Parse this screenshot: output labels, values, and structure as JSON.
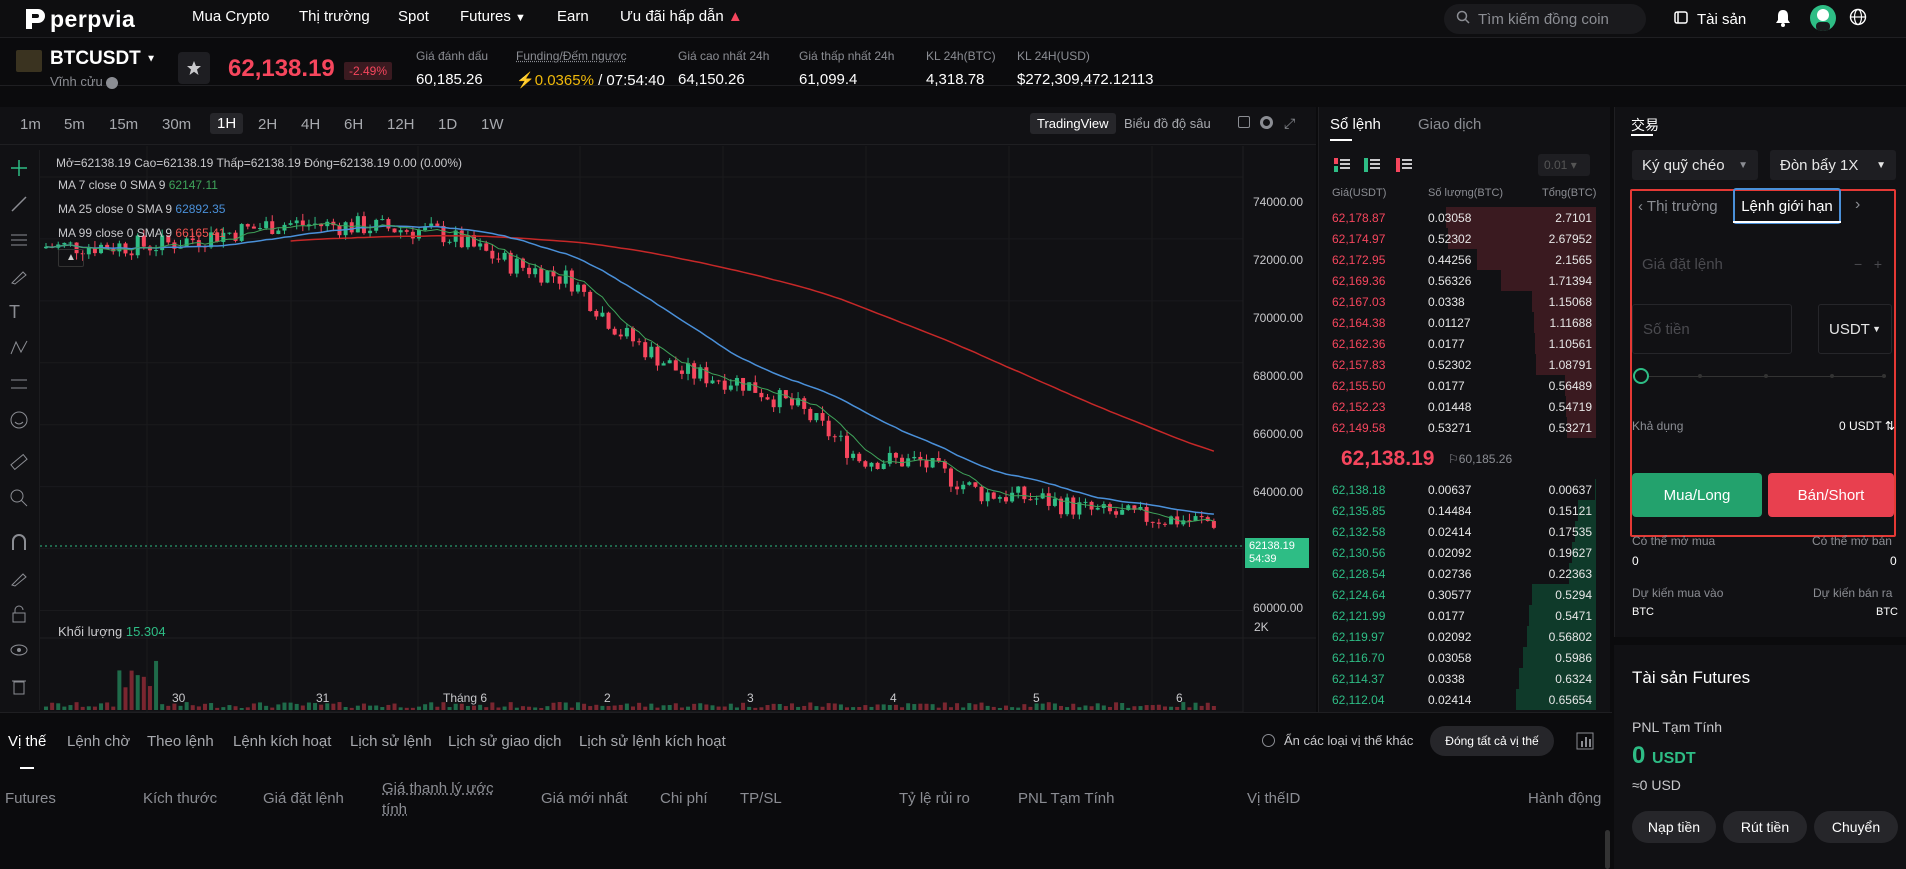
{
  "nav": {
    "logo_text": "perpvia",
    "items": [
      "Mua Crypto",
      "Thị trường",
      "Spot",
      "Futures",
      "Earn",
      "Ưu đãi hấp dẫn"
    ],
    "search_placeholder": "Tìm kiếm đồng coin",
    "assets_label": "Tài sản"
  },
  "ticker": {
    "symbol": "BTCUSDT",
    "sub": "Vĩnh cửu",
    "last_price": "62,138.19",
    "change": "-2.49%",
    "stats": [
      {
        "label": "Giá đánh dấu",
        "value": "60,185.26"
      },
      {
        "label": "Funding/Đếm ngược",
        "value_rate": "0.0365%",
        "value_count": "/ 07:54:40"
      },
      {
        "label": "Giá cao nhất 24h",
        "value": "64,150.26"
      },
      {
        "label": "Giá thấp nhất 24h",
        "value": "61,099.4"
      },
      {
        "label": "KL 24h(BTC)",
        "value": "4,318.78"
      },
      {
        "label": "KL 24H(USD)",
        "value": "$272,309,472.12113"
      }
    ]
  },
  "chart": {
    "timeframes": [
      "1m",
      "5m",
      "15m",
      "30m",
      "1H",
      "2H",
      "4H",
      "6H",
      "12H",
      "1D",
      "1W"
    ],
    "active_timeframe": "1H",
    "view_tradingview": "TradingView",
    "view_depth": "Biểu đồ độ sâu",
    "ohlc_line": "Mở=62138.19  Cao=62138.19  Thấp=62138.19  Đóng=62138.19  0.00 (0.00%)",
    "ma7_label": "MA 7 close 0 SMA 9",
    "ma7_value": "62147.11",
    "ma25_label": "MA 25 close 0 SMA 9",
    "ma25_value": "62892.35",
    "ma99_label": "MA 99 close 0 SMA 9",
    "ma99_value": "66165.41",
    "volume_label": "Khối lượng",
    "volume_value": "15.304",
    "volume_axis": "2K",
    "y_ticks": [
      "74000.00",
      "72000.00",
      "70000.00",
      "68000.00",
      "66000.00",
      "64000.00",
      "60000.00"
    ],
    "x_ticks": [
      "30",
      "31",
      "Tháng 6",
      "2",
      "3",
      "4",
      "5",
      "6"
    ],
    "price_tag": "62138.19",
    "countdown": "54:39",
    "colors": {
      "up": "#2ebd85",
      "down": "#f6465d",
      "ma7": "#3fa35a",
      "ma25": "#4a90d9",
      "ma99": "#c62828"
    }
  },
  "orderbook": {
    "tab_book": "Sổ lệnh",
    "tab_trades": "Giao dịch",
    "precision": "0.01",
    "headers": [
      "Giá(USDT)",
      "Số lượng(BTC)",
      "Tổng(BTC)"
    ],
    "asks": [
      [
        "62,178.87",
        "0.03058",
        "2.7101"
      ],
      [
        "62,174.97",
        "0.52302",
        "2.67952"
      ],
      [
        "62,172.95",
        "0.44256",
        "2.1565"
      ],
      [
        "62,169.36",
        "0.56326",
        "1.71394"
      ],
      [
        "62,167.03",
        "0.0338",
        "1.15068"
      ],
      [
        "62,164.38",
        "0.01127",
        "1.11688"
      ],
      [
        "62,162.36",
        "0.0177",
        "1.10561"
      ],
      [
        "62,157.83",
        "0.52302",
        "1.08791"
      ],
      [
        "62,155.50",
        "0.0177",
        "0.56489"
      ],
      [
        "62,152.23",
        "0.01448",
        "0.54719"
      ],
      [
        "62,149.58",
        "0.53271",
        "0.53271"
      ]
    ],
    "mid_price": "62,138.19",
    "mark_price": "60,185.26",
    "bids": [
      [
        "62,138.18",
        "0.00637",
        "0.00637"
      ],
      [
        "62,135.85",
        "0.14484",
        "0.15121"
      ],
      [
        "62,132.58",
        "0.02414",
        "0.17535"
      ],
      [
        "62,130.56",
        "0.02092",
        "0.19627"
      ],
      [
        "62,128.54",
        "0.02736",
        "0.22363"
      ],
      [
        "62,124.64",
        "0.30577",
        "0.5294"
      ],
      [
        "62,121.99",
        "0.0177",
        "0.5471"
      ],
      [
        "62,119.97",
        "0.02092",
        "0.56802"
      ],
      [
        "62,116.70",
        "0.03058",
        "0.5986"
      ],
      [
        "62,114.37",
        "0.0338",
        "0.6324"
      ],
      [
        "62,112.04",
        "0.02414",
        "0.65654"
      ]
    ]
  },
  "trade": {
    "title": "交易",
    "margin_mode": "Ký quỹ chéo",
    "leverage": "Đòn bẩy 1X",
    "tab_market": "Thị trường",
    "tab_limit": "Lệnh giới hạn",
    "price_placeholder": "Giá đặt lệnh",
    "amount_placeholder": "Số tiền",
    "currency": "USDT",
    "available_label": "Khả dụng",
    "available_value": "0 USDT",
    "buy_label": "Mua/Long",
    "sell_label": "Bán/Short",
    "can_buy_label": "Có thể mở mua",
    "can_buy_value": "0",
    "can_sell_label": "Có thể mở bán",
    "can_sell_value": "0",
    "est_buy_label": "Dự kiến mua vào",
    "est_buy_unit": "BTC",
    "est_sell_label": "Dự kiến bán ra",
    "est_sell_unit": "BTC"
  },
  "assets": {
    "title": "Tài sản Futures",
    "pnl_label": "PNL Tạm Tính",
    "pnl_value": "0",
    "pnl_unit": "USDT",
    "pnl_usd": "≈0 USD",
    "deposit": "Nạp tiền",
    "withdraw": "Rút tiền",
    "transfer": "Chuyển"
  },
  "positions": {
    "tabs": [
      "Vị thế",
      "Lệnh chờ",
      "Theo lệnh",
      "Lệnh kích hoạt",
      "Lịch sử lệnh",
      "Lịch sử giao dịch",
      "Lịch sử lệnh kích hoạt"
    ],
    "hide_others": "Ẩn các loại vị thế khác",
    "close_all": "Đóng tất cả vị thế",
    "columns": [
      "Futures",
      "Kích thước",
      "Giá đặt lệnh",
      "Giá thanh lý ước",
      "tính",
      "Giá mới nhất",
      "Chi phí",
      "TP/SL",
      "Tỷ lệ rủi ro",
      "PNL Tạm Tính",
      "Vị thếID",
      "Hành động"
    ]
  }
}
